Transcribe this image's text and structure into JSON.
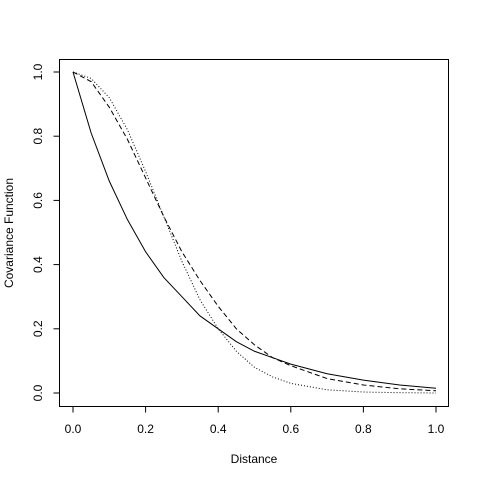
{
  "chart_data": {
    "type": "line",
    "title": "",
    "xlabel": "Distance",
    "ylabel": "Covariance Function",
    "xlim": [
      0,
      1
    ],
    "ylim": [
      0,
      1
    ],
    "xticks": [
      "0.0",
      "0.2",
      "0.4",
      "0.6",
      "0.8",
      "1.0"
    ],
    "yticks": [
      "0.0",
      "0.2",
      "0.4",
      "0.6",
      "0.8",
      "1.0"
    ],
    "grid": false,
    "legend": "none",
    "series": [
      {
        "line_style": "solid",
        "x": [
          0,
          0.05,
          0.1,
          0.15,
          0.2,
          0.25,
          0.3,
          0.35,
          0.4,
          0.45,
          0.5,
          0.55,
          0.6,
          0.7,
          0.8,
          0.9,
          1.0
        ],
        "y": [
          1.0,
          0.81,
          0.66,
          0.54,
          0.44,
          0.36,
          0.3,
          0.24,
          0.2,
          0.16,
          0.13,
          0.11,
          0.09,
          0.06,
          0.04,
          0.025,
          0.015
        ]
      },
      {
        "line_style": "dashed",
        "x": [
          0,
          0.05,
          0.1,
          0.15,
          0.2,
          0.25,
          0.3,
          0.35,
          0.4,
          0.45,
          0.5,
          0.55,
          0.6,
          0.7,
          0.8,
          0.9,
          1.0
        ],
        "y": [
          1.0,
          0.97,
          0.89,
          0.79,
          0.67,
          0.55,
          0.44,
          0.35,
          0.27,
          0.2,
          0.15,
          0.11,
          0.085,
          0.045,
          0.025,
          0.013,
          0.007
        ]
      },
      {
        "line_style": "dotted",
        "x": [
          0,
          0.05,
          0.1,
          0.15,
          0.2,
          0.25,
          0.3,
          0.35,
          0.4,
          0.45,
          0.5,
          0.55,
          0.6,
          0.7,
          0.8,
          0.9,
          1.0
        ],
        "y": [
          1.0,
          0.98,
          0.92,
          0.82,
          0.69,
          0.55,
          0.41,
          0.29,
          0.2,
          0.13,
          0.08,
          0.05,
          0.03,
          0.01,
          0.003,
          0.001,
          0.0
        ]
      }
    ]
  }
}
